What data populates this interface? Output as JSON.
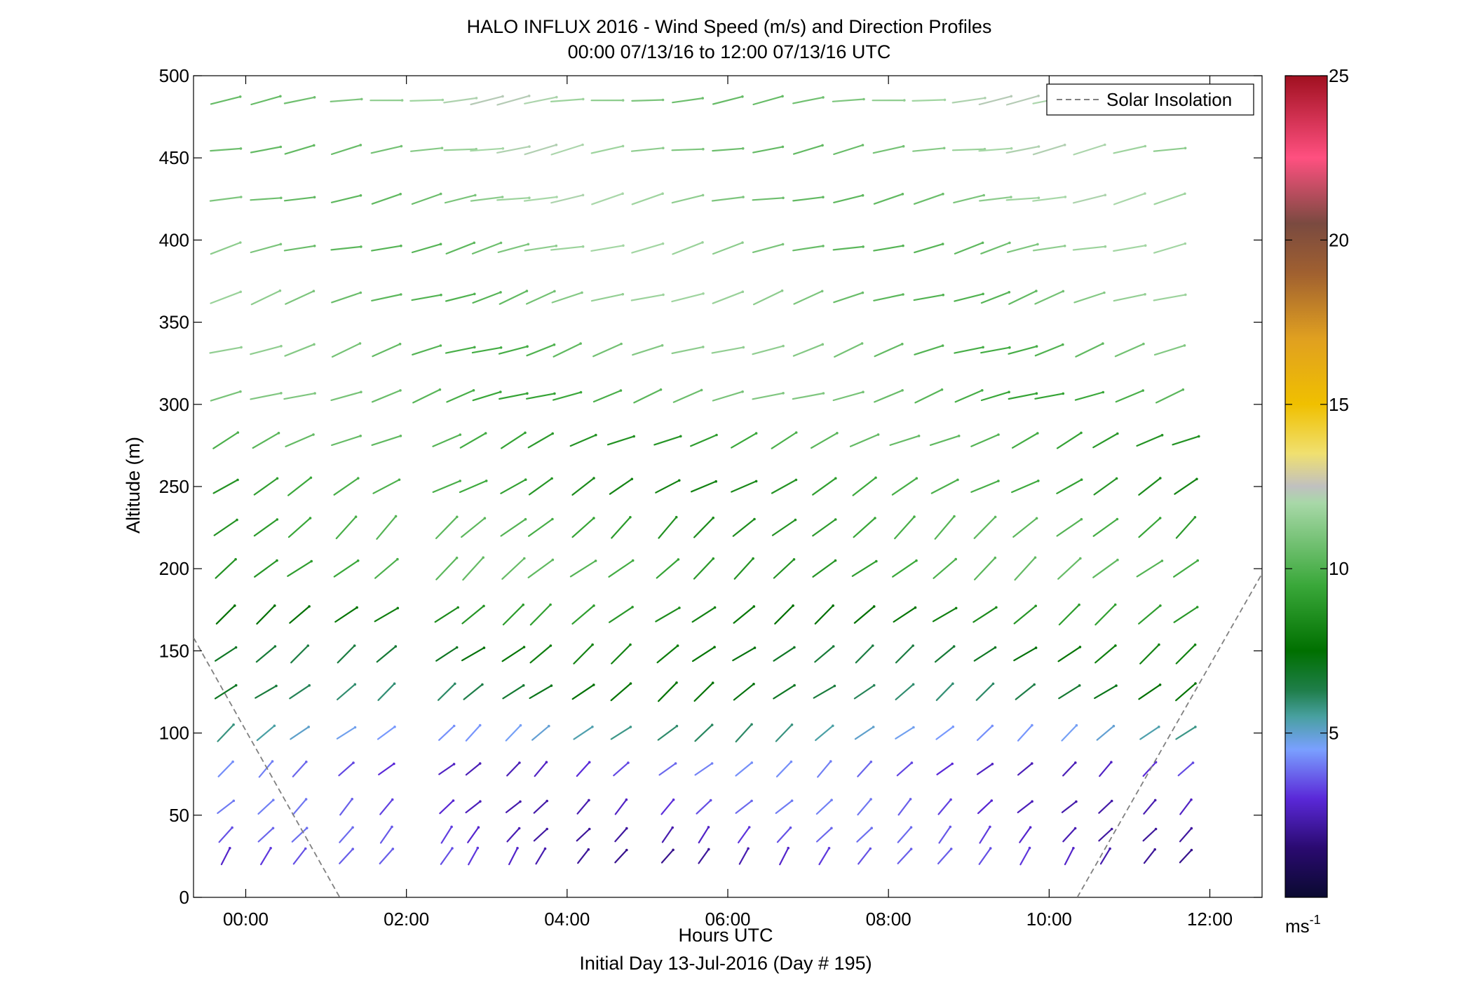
{
  "chart_data": {
    "type": "scatter",
    "title": "HALO INFLUX 2016 - Wind Speed (m/s) and Direction Profiles",
    "subtitle": "00:00 07/13/16 to 12:00 07/13/16  UTC",
    "xlabel": "Hours UTC",
    "xlabel2": "Initial Day 13-Jul-2016 (Day # 195)",
    "ylabel": "Altitude (m)",
    "x_range_hours": [
      -0.65,
      12.65
    ],
    "ylim": [
      0,
      500
    ],
    "x_ticks": [
      {
        "value": 0,
        "label": "00:00"
      },
      {
        "value": 2,
        "label": "02:00"
      },
      {
        "value": 4,
        "label": "04:00"
      },
      {
        "value": 6,
        "label": "06:00"
      },
      {
        "value": 8,
        "label": "08:00"
      },
      {
        "value": 10,
        "label": "10:00"
      },
      {
        "value": 12,
        "label": "12:00"
      }
    ],
    "y_ticks": [
      {
        "value": 0,
        "label": "0"
      },
      {
        "value": 50,
        "label": "50"
      },
      {
        "value": 100,
        "label": "100"
      },
      {
        "value": 150,
        "label": "150"
      },
      {
        "value": 200,
        "label": "200"
      },
      {
        "value": 250,
        "label": "250"
      },
      {
        "value": 300,
        "label": "300"
      },
      {
        "value": 350,
        "label": "350"
      },
      {
        "value": 400,
        "label": "400"
      },
      {
        "value": 450,
        "label": "450"
      },
      {
        "value": 500,
        "label": "500"
      }
    ],
    "legend": {
      "label": "Solar Insolation",
      "style": "dashed",
      "color": "#808080",
      "placement": "top-right"
    },
    "colorbar": {
      "range": [
        0,
        25
      ],
      "ticks": [
        {
          "value": 5,
          "label": "5"
        },
        {
          "value": 10,
          "label": "10"
        },
        {
          "value": 15,
          "label": "15"
        },
        {
          "value": 20,
          "label": "20"
        },
        {
          "value": 25,
          "label": "25"
        }
      ],
      "unit_base": "ms",
      "unit_exp": "-1",
      "stops": [
        {
          "value": 0,
          "color": "#0a0a30"
        },
        {
          "value": 1.5,
          "color": "#2a0a70"
        },
        {
          "value": 3,
          "color": "#5a28d8"
        },
        {
          "value": 4.5,
          "color": "#7aa0ff"
        },
        {
          "value": 5.5,
          "color": "#48a0a0"
        },
        {
          "value": 6.3,
          "color": "#1f7e4a"
        },
        {
          "value": 7.5,
          "color": "#007000"
        },
        {
          "value": 9.5,
          "color": "#3aa83a"
        },
        {
          "value": 12,
          "color": "#a8d8a8"
        },
        {
          "value": 12.5,
          "color": "#c0c0c0"
        },
        {
          "value": 13.5,
          "color": "#f0e070"
        },
        {
          "value": 15,
          "color": "#f0c000"
        },
        {
          "value": 17,
          "color": "#e0a020"
        },
        {
          "value": 19,
          "color": "#a06030"
        },
        {
          "value": 20.5,
          "color": "#7a4a40"
        },
        {
          "value": 22.5,
          "color": "#ff5080"
        },
        {
          "value": 25,
          "color": "#a01020"
        }
      ]
    },
    "solar_insolation": [
      {
        "x": -0.65,
        "y": 158
      },
      {
        "x": 1.17,
        "y": 0
      },
      {
        "x": 10.35,
        "y": 0
      },
      {
        "x": 12.65,
        "y": 197
      }
    ],
    "vector_fields": {
      "x_hours": [
        -0.25,
        0.25,
        0.67,
        1.25,
        1.75,
        2.5,
        2.83,
        3.33,
        3.67,
        4.2,
        4.67,
        5.25,
        5.7,
        6.2,
        6.7,
        7.2,
        7.7,
        8.2,
        8.7,
        9.2,
        9.7,
        10.25,
        10.7,
        11.25,
        11.7
      ],
      "x_hours_upper": [
        -0.25,
        0.25,
        0.67,
        1.25,
        1.75,
        2.25,
        2.67,
        3.0,
        3.33,
        3.67,
        4.0,
        4.5,
        5.0,
        5.5,
        6.0,
        6.5,
        7.0,
        7.5,
        8.0,
        8.5,
        9.0,
        9.33,
        9.67,
        10.0,
        10.5,
        11.0,
        11.5
      ],
      "rows": [
        {
          "alt": 25,
          "dir": 55,
          "speed": 2.8
        },
        {
          "alt": 38,
          "dir": 50,
          "speed": 3.0
        },
        {
          "alt": 55,
          "dir": 45,
          "speed": 3.2
        },
        {
          "alt": 78,
          "dir": 42,
          "speed": 3.4
        },
        {
          "alt": 100,
          "dir": 40,
          "speed": 5.2
        },
        {
          "alt": 125,
          "dir": 38,
          "speed": 6.8
        },
        {
          "alt": 148,
          "dir": 38,
          "speed": 7.3
        },
        {
          "alt": 172,
          "dir": 38,
          "speed": 8.3
        },
        {
          "alt": 200,
          "dir": 40,
          "speed": 9.6
        },
        {
          "alt": 225,
          "dir": 42,
          "speed": 9.4
        },
        {
          "alt": 250,
          "dir": 30,
          "speed": 9.0
        },
        {
          "alt": 278,
          "dir": 25,
          "speed": 9.6
        },
        {
          "alt": 305,
          "dir": 18,
          "speed": 10.2
        },
        {
          "alt": 333,
          "dir": 18,
          "speed": 10.6
        },
        {
          "alt": 365,
          "dir": 18,
          "speed": 10.9
        },
        {
          "alt": 395,
          "dir": 14,
          "speed": 11.0
        },
        {
          "alt": 425,
          "dir": 12,
          "speed": 11.2
        },
        {
          "alt": 455,
          "dir": 10,
          "speed": 11.3
        },
        {
          "alt": 485,
          "dir": 8,
          "speed": 11.4
        }
      ]
    }
  }
}
